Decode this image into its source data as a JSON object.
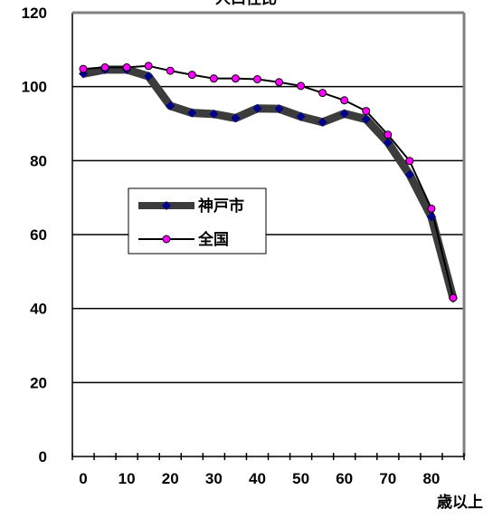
{
  "chart_data": {
    "type": "line",
    "title": "人口性比",
    "xlabel": "歳以上",
    "ylabel": "",
    "x": [
      0,
      5,
      10,
      15,
      20,
      25,
      30,
      35,
      40,
      45,
      50,
      55,
      60,
      65,
      70,
      75,
      80,
      85
    ],
    "x_tick_labels": [
      "0",
      "10",
      "20",
      "30",
      "40",
      "50",
      "60",
      "70",
      "80"
    ],
    "x_tick_values": [
      0,
      10,
      20,
      30,
      40,
      50,
      60,
      70,
      80
    ],
    "xlim": [
      -2.5,
      87.5
    ],
    "y_tick_labels": [
      "0",
      "20",
      "40",
      "60",
      "80",
      "100",
      "120"
    ],
    "y_tick_values": [
      0,
      20,
      40,
      60,
      80,
      100,
      120
    ],
    "ylim": [
      0,
      120
    ],
    "grid": "horizontal",
    "legend_position": "center-left",
    "series": [
      {
        "name": "神戸市",
        "color": "#3c3c3c",
        "marker": "diamond",
        "marker_color": "#00008b",
        "values": [
          103.5,
          104.6,
          104.6,
          102.8,
          94.8,
          92.9,
          92.6,
          91.5,
          94.1,
          94.0,
          91.9,
          90.4,
          92.7,
          91.2,
          84.9,
          76.2,
          64.8,
          42.8
        ]
      },
      {
        "name": "全国",
        "color": "#000000",
        "marker": "circle",
        "marker_color": "#ff00ff",
        "values": [
          104.8,
          105.2,
          105.2,
          105.6,
          104.3,
          103.2,
          102.2,
          102.2,
          102.0,
          101.2,
          100.2,
          98.3,
          96.3,
          93.4,
          87.0,
          79.9,
          67.0,
          42.9
        ]
      }
    ]
  }
}
